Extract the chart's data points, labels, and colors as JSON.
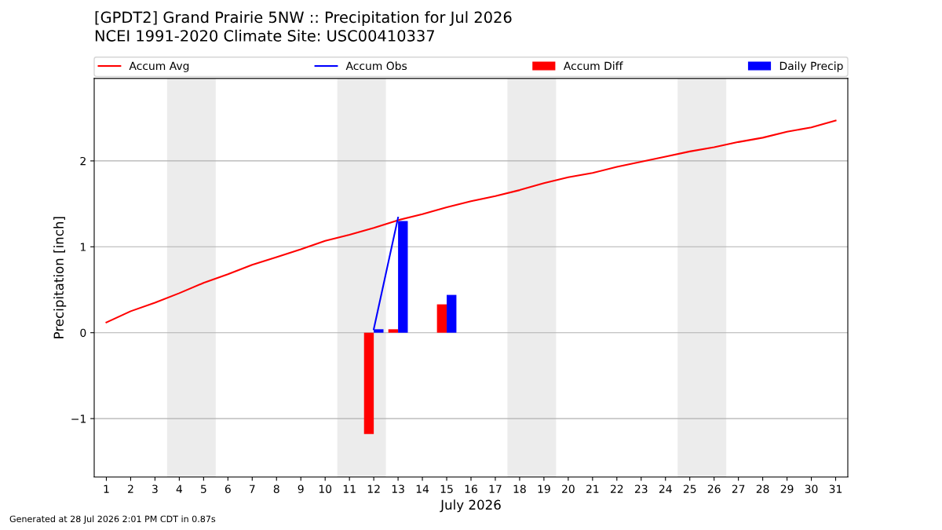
{
  "chart_data": {
    "type": "bar",
    "title": "[GPDT2] Grand Prairie 5NW :: Precipitation for Jul 2026",
    "subtitle": "NCEI 1991-2020 Climate Site: USC00410337",
    "xlabel": "July 2026",
    "ylabel": "Precipitation [inch]",
    "x": [
      1,
      2,
      3,
      4,
      5,
      6,
      7,
      8,
      9,
      10,
      11,
      12,
      13,
      14,
      15,
      16,
      17,
      18,
      19,
      20,
      21,
      22,
      23,
      24,
      25,
      26,
      27,
      28,
      29,
      30,
      31
    ],
    "series": [
      {
        "name": "Accum Avg",
        "type": "line",
        "color": "#ff0000",
        "values": [
          0.12,
          0.25,
          0.35,
          0.46,
          0.58,
          0.68,
          0.79,
          0.88,
          0.97,
          1.07,
          1.14,
          1.22,
          1.31,
          1.38,
          1.46,
          1.53,
          1.59,
          1.66,
          1.74,
          1.81,
          1.86,
          1.93,
          1.99,
          2.05,
          2.11,
          2.16,
          2.22,
          2.27,
          2.34,
          2.39,
          2.47
        ]
      },
      {
        "name": "Accum Obs",
        "type": "line",
        "color": "#0000ff",
        "values": [
          null,
          null,
          null,
          null,
          null,
          null,
          null,
          null,
          null,
          null,
          null,
          0.04,
          1.34,
          null,
          null,
          null,
          null,
          null,
          null,
          null,
          null,
          null,
          null,
          null,
          null,
          null,
          null,
          null,
          null,
          null,
          null
        ]
      },
      {
        "name": "Accum Diff",
        "color": "#ff0000",
        "values": [
          null,
          null,
          null,
          null,
          null,
          null,
          null,
          null,
          null,
          null,
          null,
          -1.18,
          0.04,
          null,
          0.33,
          null,
          null,
          null,
          null,
          null,
          null,
          null,
          null,
          null,
          null,
          null,
          null,
          null,
          null,
          null,
          null
        ]
      },
      {
        "name": "Daily Precip",
        "color": "#0000ff",
        "values": [
          null,
          null,
          null,
          null,
          null,
          null,
          null,
          null,
          null,
          null,
          null,
          0.04,
          1.3,
          null,
          0.44,
          null,
          null,
          null,
          null,
          null,
          null,
          null,
          null,
          null,
          null,
          null,
          null,
          null,
          null,
          null,
          null
        ]
      }
    ],
    "bands": [
      {
        "axis": "x",
        "from": 3.5,
        "to": 5.5,
        "color": "#ececec"
      },
      {
        "axis": "x",
        "from": 10.5,
        "to": 12.5,
        "color": "#ececec"
      },
      {
        "axis": "x",
        "from": 17.5,
        "to": 19.5,
        "color": "#ececec"
      },
      {
        "axis": "x",
        "from": 24.5,
        "to": 26.5,
        "color": "#ececec"
      }
    ],
    "xlim": [
      0.5,
      31.5
    ],
    "xticks": [
      1,
      2,
      3,
      4,
      5,
      6,
      7,
      8,
      9,
      10,
      11,
      12,
      13,
      14,
      15,
      16,
      17,
      18,
      19,
      20,
      21,
      22,
      23,
      24,
      25,
      26,
      27,
      28,
      29,
      30,
      31
    ],
    "ylim": [
      -1.68,
      2.96
    ],
    "yticks": [
      {
        "value": -1,
        "label": "−1"
      },
      0,
      1,
      2
    ],
    "grid": "y",
    "legend": "top",
    "annotations": [
      "Generated at 28 Jul 2026 2:01 PM CDT in 0.87s"
    ]
  }
}
